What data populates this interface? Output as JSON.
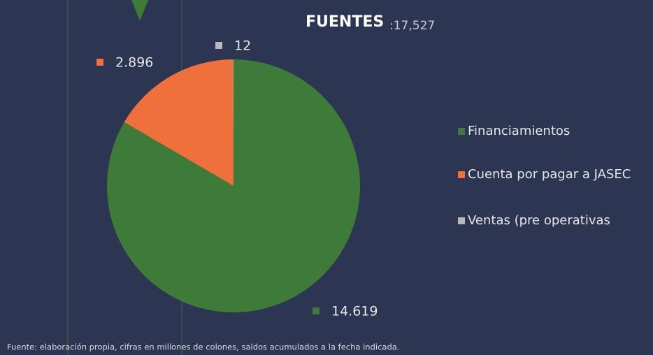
{
  "chart_data": {
    "type": "pie",
    "title": "FUENTES",
    "subtitle": ":17,527",
    "categories": [
      "Financiamientos",
      "Cuenta por pagar a JASEC",
      "Ventas (pre operativas"
    ],
    "values": [
      14619,
      2896,
      12
    ],
    "value_labels": [
      "14.619",
      "2.896",
      "12"
    ],
    "colors": [
      "#3e7a38",
      "#f0703c",
      "#b9b9b9"
    ],
    "legend": "right",
    "footnote": "Fuente: elaboración propia, cifras en millones de colones, saldos acumulados a la fecha indicada."
  }
}
